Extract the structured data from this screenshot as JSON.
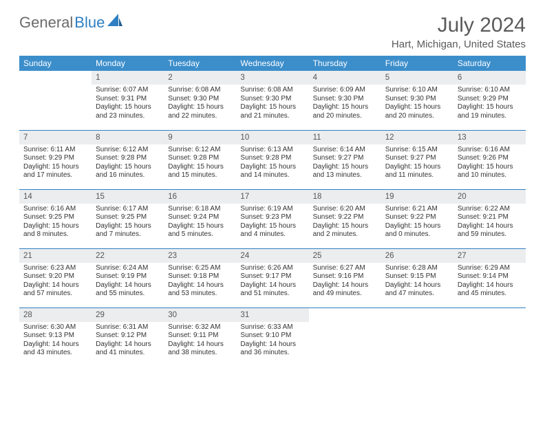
{
  "logo": {
    "text1": "General",
    "text2": "Blue"
  },
  "title": "July 2024",
  "location": "Hart, Michigan, United States",
  "colors": {
    "header_bg": "#3c8ecb",
    "row_border": "#2f7fc2",
    "daynum_bg": "#ebedef",
    "text": "#333333",
    "title_text": "#5a5a5a"
  },
  "dows": [
    "Sunday",
    "Monday",
    "Tuesday",
    "Wednesday",
    "Thursday",
    "Friday",
    "Saturday"
  ],
  "weeks": [
    [
      null,
      {
        "n": "1",
        "sr": "6:07 AM",
        "ss": "9:31 PM",
        "dl": "15 hours and 23 minutes."
      },
      {
        "n": "2",
        "sr": "6:08 AM",
        "ss": "9:30 PM",
        "dl": "15 hours and 22 minutes."
      },
      {
        "n": "3",
        "sr": "6:08 AM",
        "ss": "9:30 PM",
        "dl": "15 hours and 21 minutes."
      },
      {
        "n": "4",
        "sr": "6:09 AM",
        "ss": "9:30 PM",
        "dl": "15 hours and 20 minutes."
      },
      {
        "n": "5",
        "sr": "6:10 AM",
        "ss": "9:30 PM",
        "dl": "15 hours and 20 minutes."
      },
      {
        "n": "6",
        "sr": "6:10 AM",
        "ss": "9:29 PM",
        "dl": "15 hours and 19 minutes."
      }
    ],
    [
      {
        "n": "7",
        "sr": "6:11 AM",
        "ss": "9:29 PM",
        "dl": "15 hours and 17 minutes."
      },
      {
        "n": "8",
        "sr": "6:12 AM",
        "ss": "9:28 PM",
        "dl": "15 hours and 16 minutes."
      },
      {
        "n": "9",
        "sr": "6:12 AM",
        "ss": "9:28 PM",
        "dl": "15 hours and 15 minutes."
      },
      {
        "n": "10",
        "sr": "6:13 AM",
        "ss": "9:28 PM",
        "dl": "15 hours and 14 minutes."
      },
      {
        "n": "11",
        "sr": "6:14 AM",
        "ss": "9:27 PM",
        "dl": "15 hours and 13 minutes."
      },
      {
        "n": "12",
        "sr": "6:15 AM",
        "ss": "9:27 PM",
        "dl": "15 hours and 11 minutes."
      },
      {
        "n": "13",
        "sr": "6:16 AM",
        "ss": "9:26 PM",
        "dl": "15 hours and 10 minutes."
      }
    ],
    [
      {
        "n": "14",
        "sr": "6:16 AM",
        "ss": "9:25 PM",
        "dl": "15 hours and 8 minutes."
      },
      {
        "n": "15",
        "sr": "6:17 AM",
        "ss": "9:25 PM",
        "dl": "15 hours and 7 minutes."
      },
      {
        "n": "16",
        "sr": "6:18 AM",
        "ss": "9:24 PM",
        "dl": "15 hours and 5 minutes."
      },
      {
        "n": "17",
        "sr": "6:19 AM",
        "ss": "9:23 PM",
        "dl": "15 hours and 4 minutes."
      },
      {
        "n": "18",
        "sr": "6:20 AM",
        "ss": "9:22 PM",
        "dl": "15 hours and 2 minutes."
      },
      {
        "n": "19",
        "sr": "6:21 AM",
        "ss": "9:22 PM",
        "dl": "15 hours and 0 minutes."
      },
      {
        "n": "20",
        "sr": "6:22 AM",
        "ss": "9:21 PM",
        "dl": "14 hours and 59 minutes."
      }
    ],
    [
      {
        "n": "21",
        "sr": "6:23 AM",
        "ss": "9:20 PM",
        "dl": "14 hours and 57 minutes."
      },
      {
        "n": "22",
        "sr": "6:24 AM",
        "ss": "9:19 PM",
        "dl": "14 hours and 55 minutes."
      },
      {
        "n": "23",
        "sr": "6:25 AM",
        "ss": "9:18 PM",
        "dl": "14 hours and 53 minutes."
      },
      {
        "n": "24",
        "sr": "6:26 AM",
        "ss": "9:17 PM",
        "dl": "14 hours and 51 minutes."
      },
      {
        "n": "25",
        "sr": "6:27 AM",
        "ss": "9:16 PM",
        "dl": "14 hours and 49 minutes."
      },
      {
        "n": "26",
        "sr": "6:28 AM",
        "ss": "9:15 PM",
        "dl": "14 hours and 47 minutes."
      },
      {
        "n": "27",
        "sr": "6:29 AM",
        "ss": "9:14 PM",
        "dl": "14 hours and 45 minutes."
      }
    ],
    [
      {
        "n": "28",
        "sr": "6:30 AM",
        "ss": "9:13 PM",
        "dl": "14 hours and 43 minutes."
      },
      {
        "n": "29",
        "sr": "6:31 AM",
        "ss": "9:12 PM",
        "dl": "14 hours and 41 minutes."
      },
      {
        "n": "30",
        "sr": "6:32 AM",
        "ss": "9:11 PM",
        "dl": "14 hours and 38 minutes."
      },
      {
        "n": "31",
        "sr": "6:33 AM",
        "ss": "9:10 PM",
        "dl": "14 hours and 36 minutes."
      },
      null,
      null,
      null
    ]
  ],
  "labels": {
    "sunrise": "Sunrise: ",
    "sunset": "Sunset: ",
    "daylight": "Daylight: "
  }
}
